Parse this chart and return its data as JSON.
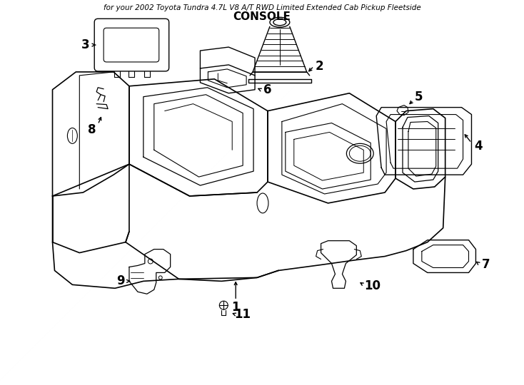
{
  "title": "CONSOLE",
  "subtitle": "for your 2002 Toyota Tundra 4.7L V8 A/T RWD Limited Extended Cab Pickup Fleetside",
  "bg_color": "#ffffff",
  "line_color": "#000000",
  "fig_width": 7.34,
  "fig_height": 5.4,
  "dpi": 100
}
